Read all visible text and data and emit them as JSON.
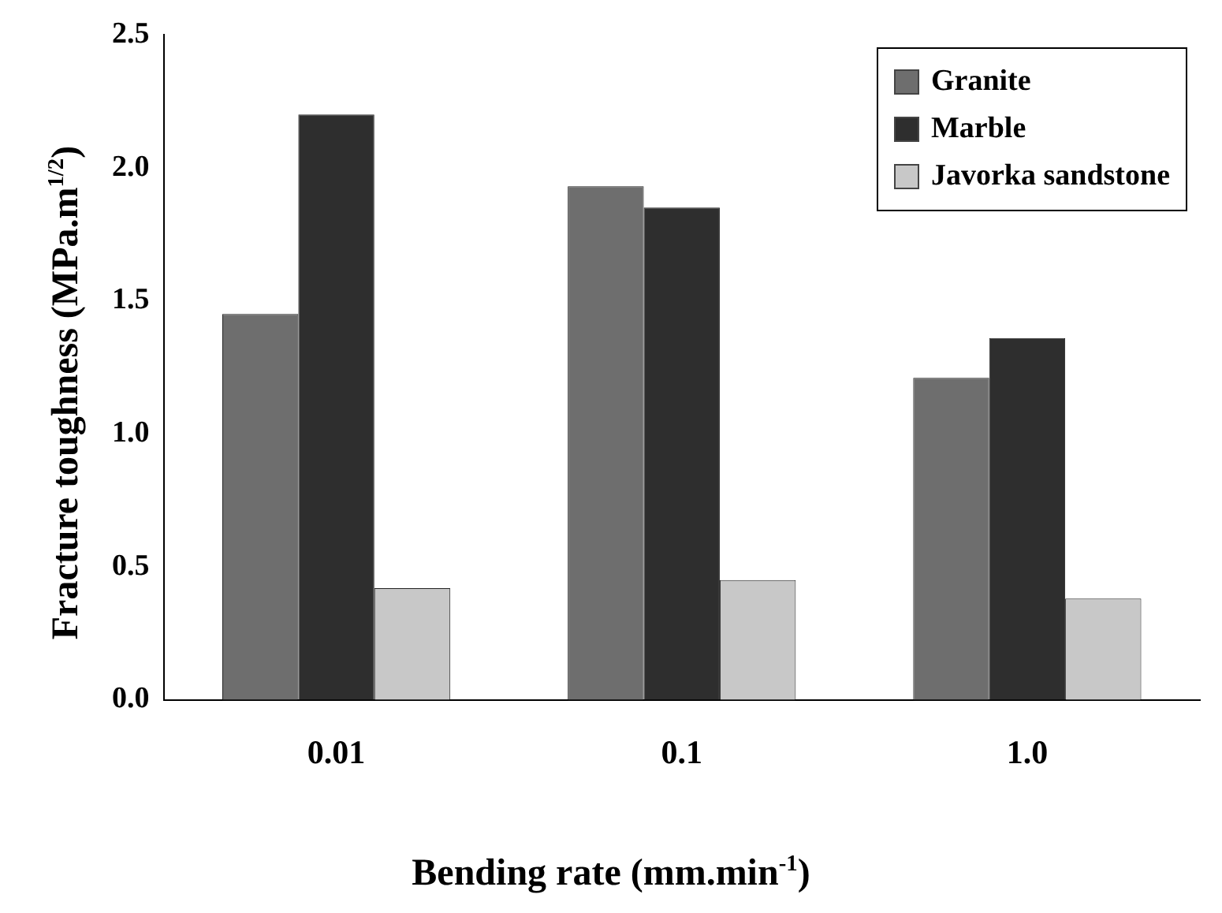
{
  "chart_data": {
    "type": "bar",
    "xlabel": "Bending rate (mm.min$^{-1}$)",
    "ylabel": "Fracture toughness (MPa.m$^{1/2}$)",
    "categories": [
      "0.01",
      "0.1",
      "1.0"
    ],
    "series": [
      {
        "name": "Granite",
        "color": "#6e6e6e",
        "values": [
          1.45,
          1.93,
          1.21
        ]
      },
      {
        "name": "Marble",
        "color": "#2e2e2e",
        "values": [
          2.2,
          1.85,
          1.36
        ]
      },
      {
        "name": "Javorka sandstone",
        "color": "#c8c8c8",
        "values": [
          0.42,
          0.45,
          0.38
        ]
      }
    ],
    "ylim": [
      0,
      2.5
    ],
    "yticks": [
      {
        "value": 0,
        "label": "0.0"
      },
      {
        "value": 0.5,
        "label": "0.5"
      },
      {
        "value": 1,
        "label": "1.0"
      },
      {
        "value": 1.5,
        "label": "1.5"
      },
      {
        "value": 2,
        "label": "2.0"
      },
      {
        "value": 2.5,
        "label": "2.5"
      }
    ],
    "grid": false,
    "legend": "top right"
  }
}
